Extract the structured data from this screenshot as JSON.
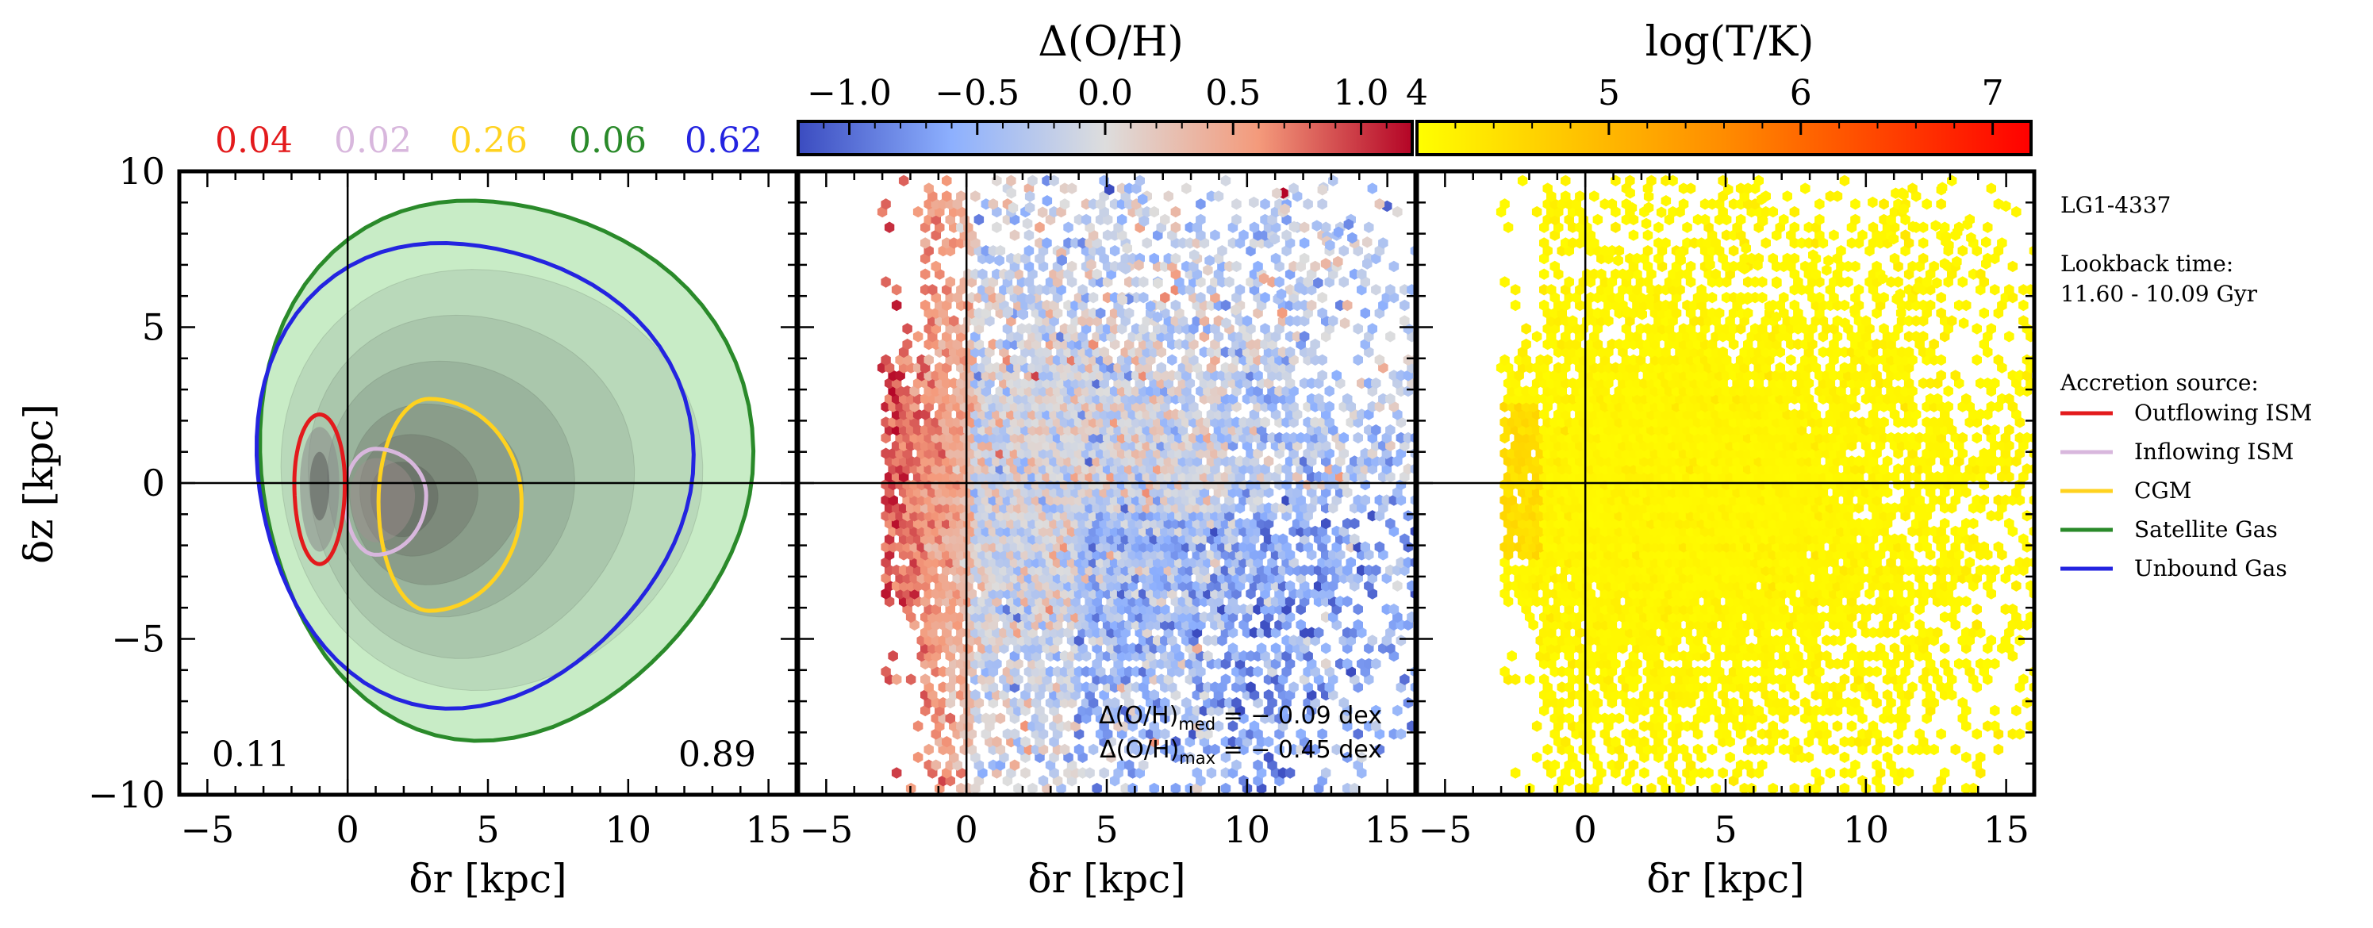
{
  "figure": {
    "run_label": "LG1-4337",
    "lookback_label": "Lookback time:",
    "lookback_value": "11.60 - 10.09 Gyr",
    "legend_title": "Accretion source:",
    "legend_items": [
      {
        "label": "Outflowing ISM",
        "color": "#e31a1c"
      },
      {
        "label": "Inflowing ISM",
        "color": "#d8b7dd"
      },
      {
        "label": "CGM",
        "color": "#ffd21f"
      },
      {
        "label": "Satellite Gas",
        "color": "#2a8a2a"
      },
      {
        "label": "Unbound Gas",
        "color": "#2424e0"
      }
    ]
  },
  "chart_data": [
    {
      "type": "contour",
      "panel": "left",
      "xlabel": "δr [kpc]",
      "ylabel": "δz [kpc]",
      "xlim": [
        -6,
        16
      ],
      "ylim": [
        -10,
        10
      ],
      "xticks": [
        -5,
        0,
        5,
        10,
        15
      ],
      "yticks": [
        -10,
        -5,
        0,
        5,
        10
      ],
      "source_fractions": [
        {
          "source": "Outflowing ISM",
          "value": "0.04",
          "color": "#e31a1c"
        },
        {
          "source": "Inflowing ISM",
          "value": "0.02",
          "color": "#d8b7dd"
        },
        {
          "source": "CGM",
          "value": "0.26",
          "color": "#ffd21f"
        },
        {
          "source": "Satellite Gas",
          "value": "0.06",
          "color": "#2a8a2a"
        },
        {
          "source": "Unbound Gas",
          "value": "0.62",
          "color": "#2424e0"
        }
      ],
      "side_fractions": {
        "left": "0.11",
        "right": "0.89"
      },
      "contours": [
        {
          "source": "Satellite Gas",
          "center": [
            5.2,
            0.3
          ],
          "rx": [
            9.0,
            8.5
          ],
          "ry": [
            9.0,
            8.3
          ]
        },
        {
          "source": "Unbound Gas",
          "center": [
            4.1,
            0.3
          ],
          "rx": [
            8.0,
            7.5
          ],
          "ry": [
            7.6,
            7.3
          ]
        },
        {
          "source": "CGM",
          "center": [
            2.9,
            -0.6
          ],
          "rx": [
            3.3,
            1.8
          ],
          "ry": [
            3.3,
            3.5
          ]
        },
        {
          "source": "Inflowing ISM",
          "center": [
            1.0,
            -0.4
          ],
          "rx": [
            1.8,
            1.1
          ],
          "ry": [
            1.5,
            1.9
          ]
        },
        {
          "source": "Outflowing ISM",
          "center": [
            -1.0,
            0.0
          ],
          "rx": [
            0.9,
            0.9
          ],
          "ry": [
            2.2,
            2.6
          ]
        }
      ]
    },
    {
      "type": "hexbin",
      "panel": "middle",
      "colorbar_label": "Δ(O/H)",
      "colorbar_ticks": [
        "−1.0",
        "−0.5",
        "0.0",
        "0.5",
        "1.0"
      ],
      "colorbar_range": [
        -1.2,
        1.2
      ],
      "colormap": "coolwarm",
      "xlabel": "δr [kpc]",
      "xlim": [
        -6,
        16
      ],
      "ylim": [
        -10,
        10
      ],
      "xticks": [
        -5,
        0,
        5,
        10,
        15
      ],
      "annotation_med": "Δ(O/H)med = −0.09 dex",
      "annotation_max": "Δ(O/H)max = −0.45 dex",
      "median_value": -0.09,
      "max_value": -0.45
    },
    {
      "type": "hexbin",
      "panel": "right",
      "colorbar_label": "log(T/K)",
      "colorbar_ticks": [
        "4",
        "5",
        "6",
        "7"
      ],
      "colorbar_range": [
        4.0,
        7.2
      ],
      "colormap": "autumn_r",
      "xlabel": "δr [kpc]",
      "xlim": [
        -6,
        16
      ],
      "ylim": [
        -10,
        10
      ],
      "xticks": [
        -5,
        0,
        5,
        10,
        15
      ],
      "typical_value": 4.1
    }
  ]
}
